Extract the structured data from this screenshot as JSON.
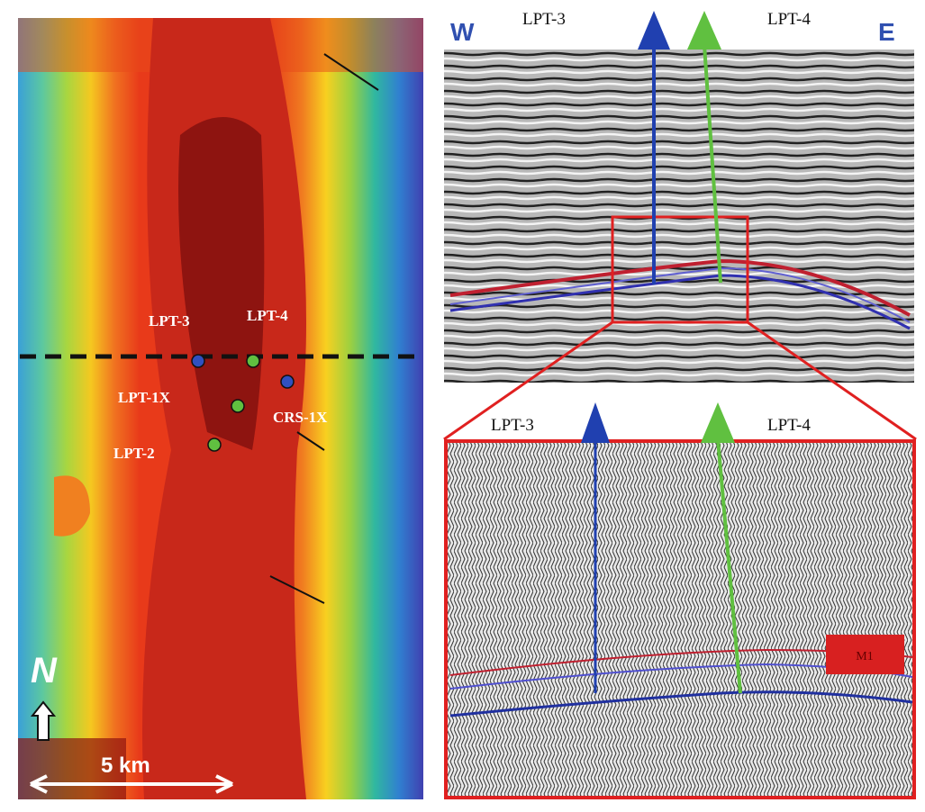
{
  "map": {
    "wells": [
      {
        "label": "LPT-3"
      },
      {
        "label": "LPT-4"
      },
      {
        "label": "LPT-1X"
      },
      {
        "label": "CRS-1X"
      },
      {
        "label": "LPT-2"
      }
    ],
    "north": "N",
    "scale": "5 km"
  },
  "seismic": {
    "west": "W",
    "east": "E",
    "wells": [
      {
        "label": "LPT-3"
      },
      {
        "label": "LPT-4"
      }
    ]
  },
  "zoom": {
    "wells": [
      {
        "label": "LPT-3"
      },
      {
        "label": "LPT-4"
      }
    ],
    "horizon_label": "M1"
  }
}
